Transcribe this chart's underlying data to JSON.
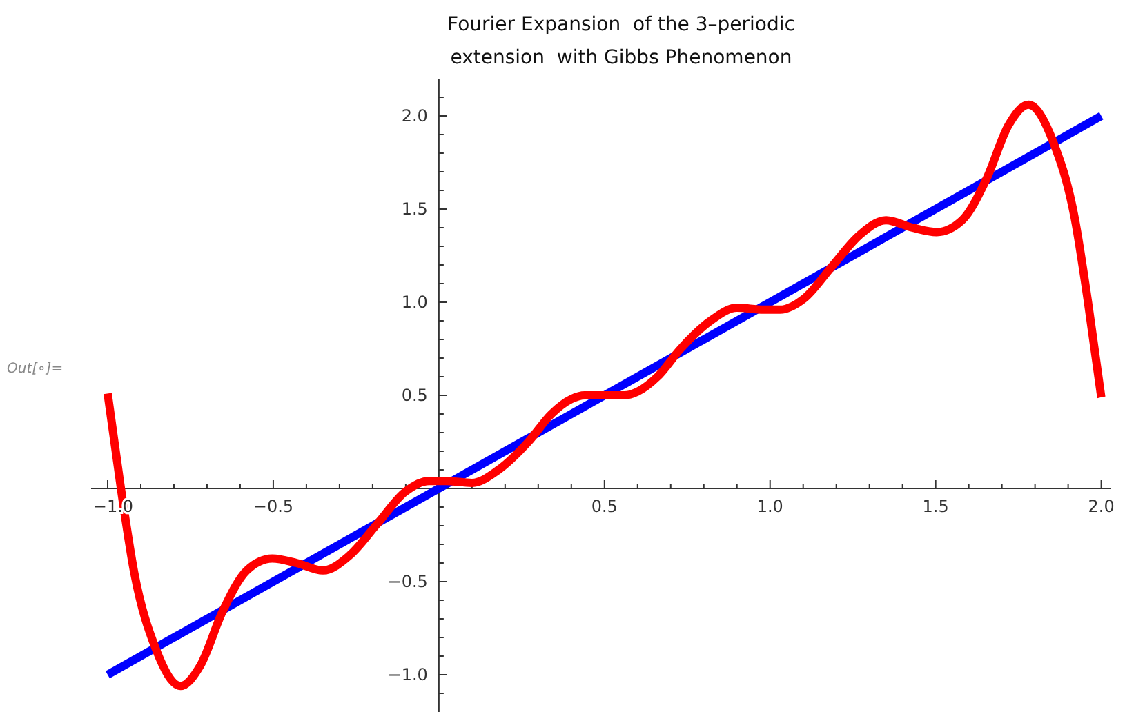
{
  "chart_data": {
    "type": "line",
    "title": "Fourier Expansion  of the 3–periodic\nextension  with Gibbs Phenomenon",
    "annotations": [
      "Out[∘]="
    ],
    "xlim": [
      -1.05,
      2.03
    ],
    "ylim": [
      -1.2,
      2.2
    ],
    "xticks": [
      {
        "value": -1,
        "label": "−1.0"
      },
      {
        "value": -0.9,
        "label": null
      },
      {
        "value": -0.8,
        "label": null
      },
      {
        "value": -0.7,
        "label": null
      },
      {
        "value": -0.6,
        "label": null
      },
      {
        "value": -0.5,
        "label": "−0.5"
      },
      {
        "value": -0.4,
        "label": null
      },
      {
        "value": -0.3,
        "label": null
      },
      {
        "value": -0.2,
        "label": null
      },
      {
        "value": -0.1,
        "label": null
      },
      {
        "value": 0.1,
        "label": null
      },
      {
        "value": 0.2,
        "label": null
      },
      {
        "value": 0.3,
        "label": null
      },
      {
        "value": 0.4,
        "label": null
      },
      {
        "value": 0.5,
        "label": "0.5"
      },
      {
        "value": 0.6,
        "label": null
      },
      {
        "value": 0.7,
        "label": null
      },
      {
        "value": 0.8,
        "label": null
      },
      {
        "value": 0.9,
        "label": null
      },
      {
        "value": 1,
        "label": "1.0"
      },
      {
        "value": 1.1,
        "label": null
      },
      {
        "value": 1.2,
        "label": null
      },
      {
        "value": 1.3,
        "label": null
      },
      {
        "value": 1.4,
        "label": null
      },
      {
        "value": 1.5,
        "label": "1.5"
      },
      {
        "value": 1.6,
        "label": null
      },
      {
        "value": 1.7,
        "label": null
      },
      {
        "value": 1.8,
        "label": null
      },
      {
        "value": 1.9,
        "label": null
      },
      {
        "value": 2,
        "label": "2.0"
      }
    ],
    "yticks": [
      {
        "value": -1.1,
        "label": null
      },
      {
        "value": -1,
        "label": "−1.0"
      },
      {
        "value": -0.9,
        "label": null
      },
      {
        "value": -0.8,
        "label": null
      },
      {
        "value": -0.7,
        "label": null
      },
      {
        "value": -0.6,
        "label": null
      },
      {
        "value": -0.5,
        "label": "−0.5"
      },
      {
        "value": -0.4,
        "label": null
      },
      {
        "value": -0.3,
        "label": null
      },
      {
        "value": -0.2,
        "label": null
      },
      {
        "value": -0.1,
        "label": null
      },
      {
        "value": 0.1,
        "label": null
      },
      {
        "value": 0.2,
        "label": null
      },
      {
        "value": 0.3,
        "label": null
      },
      {
        "value": 0.4,
        "label": null
      },
      {
        "value": 0.5,
        "label": "0.5"
      },
      {
        "value": 0.6,
        "label": null
      },
      {
        "value": 0.7,
        "label": null
      },
      {
        "value": 0.8,
        "label": null
      },
      {
        "value": 0.9,
        "label": null
      },
      {
        "value": 1,
        "label": "1.0"
      },
      {
        "value": 1.1,
        "label": null
      },
      {
        "value": 1.2,
        "label": null
      },
      {
        "value": 1.3,
        "label": null
      },
      {
        "value": 1.4,
        "label": null
      },
      {
        "value": 1.5,
        "label": "1.5"
      },
      {
        "value": 1.6,
        "label": null
      },
      {
        "value": 1.7,
        "label": null
      },
      {
        "value": 1.8,
        "label": null
      },
      {
        "value": 1.9,
        "label": null
      },
      {
        "value": 2,
        "label": "2.0"
      },
      {
        "value": 2.1,
        "label": null
      }
    ],
    "grid": false,
    "marker": "none",
    "line_style": "solid",
    "series": [
      {
        "color": "#0000ff",
        "x": [
          -1,
          2
        ],
        "values": [
          -1,
          2
        ]
      },
      {
        "color": "#ff0000",
        "x": [
          -1,
          -0.96,
          -0.92,
          -0.855,
          -0.78,
          -0.72,
          -0.653,
          -0.58,
          -0.503,
          -0.43,
          -0.35,
          -0.27,
          -0.186,
          -0.103,
          -0.03,
          0.02,
          0.1,
          0.18,
          0.27,
          0.34,
          0.4,
          0.44,
          0.5,
          0.56,
          0.6,
          0.66,
          0.73,
          0.82,
          0.9,
          0.98,
          1.03,
          1.103,
          1.186,
          1.27,
          1.35,
          1.43,
          1.503,
          1.58,
          1.653,
          1.72,
          1.78,
          1.855,
          1.92,
          1.96,
          2
        ],
        "values": [
          0.51,
          0,
          -0.45,
          -0.86,
          -1.06,
          -0.95,
          -0.66,
          -0.44,
          -0.376,
          -0.4,
          -0.44,
          -0.36,
          -0.19,
          -0.02,
          0.04,
          0.04,
          0.03,
          0.1,
          0.25,
          0.4,
          0.48,
          0.5,
          0.5,
          0.5,
          0.52,
          0.6,
          0.75,
          0.9,
          0.97,
          0.96,
          0.96,
          1.02,
          1.19,
          1.36,
          1.44,
          1.4,
          1.376,
          1.44,
          1.66,
          1.95,
          2.06,
          1.86,
          1.45,
          1,
          0.49
        ]
      }
    ]
  }
}
